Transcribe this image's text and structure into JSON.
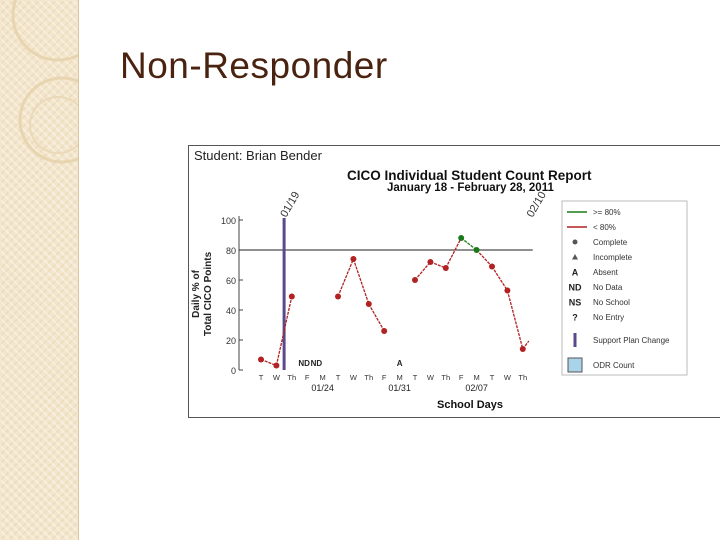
{
  "slide": {
    "title": "Non-Responder"
  },
  "chart_data": {
    "type": "line",
    "student_label": "Student: Brian Bender",
    "title": "CICO Individual Student Count Report",
    "subtitle": "January 18 - February 28, 2011",
    "ylabel_line1": "Daily % of",
    "ylabel_line2": "Total CICO Points",
    "xlabel": "School Days",
    "ylim": [
      0,
      100
    ],
    "y_ticks": [
      0,
      20,
      40,
      60,
      80,
      100
    ],
    "goal_line": 80,
    "x_ticks": [
      "T",
      "W",
      "Th",
      "F",
      "M",
      "T",
      "W",
      "Th",
      "F",
      "M",
      "T",
      "W",
      "Th",
      "F",
      "M",
      "T",
      "W",
      "Th"
    ],
    "date_labels": [
      {
        "index": 4,
        "text": "01/24"
      },
      {
        "index": 9,
        "text": "01/31"
      },
      {
        "index": 14,
        "text": "02/07"
      }
    ],
    "rotated_labels": [
      {
        "index": 1.5,
        "text": "01/19"
      },
      {
        "index": 17.5,
        "text": "02/10"
      }
    ],
    "status_labels": [
      {
        "index": 2.8,
        "text": "ND"
      },
      {
        "index": 3.6,
        "text": "ND"
      },
      {
        "index": 9.0,
        "text": "A"
      }
    ],
    "support_plan_change_index": 1.5,
    "points": [
      {
        "x": 0,
        "y": 7,
        "color": "#b22222"
      },
      {
        "x": 1,
        "y": 3,
        "color": "#b22222"
      },
      {
        "x": 2,
        "y": 49,
        "color": "#b22222"
      },
      {
        "x": 5,
        "y": 49,
        "color": "#b22222"
      },
      {
        "x": 6,
        "y": 74,
        "color": "#b22222"
      },
      {
        "x": 7,
        "y": 44,
        "color": "#b22222"
      },
      {
        "x": 8,
        "y": 26,
        "color": "#b22222"
      },
      {
        "x": 10,
        "y": 60,
        "color": "#b22222"
      },
      {
        "x": 11,
        "y": 72,
        "color": "#b22222"
      },
      {
        "x": 12,
        "y": 68,
        "color": "#b22222"
      },
      {
        "x": 13,
        "y": 88,
        "color": "#1a7a1a"
      },
      {
        "x": 14,
        "y": 80,
        "color": "#1a7a1a"
      },
      {
        "x": 15,
        "y": 69,
        "color": "#b22222"
      },
      {
        "x": 16,
        "y": 53,
        "color": "#b22222"
      },
      {
        "x": 17,
        "y": 14,
        "color": "#b22222"
      }
    ],
    "segments": [
      [
        0,
        1,
        2
      ],
      [
        3,
        4,
        5,
        6
      ],
      [
        7,
        8,
        9,
        10,
        11,
        12,
        13,
        14
      ]
    ],
    "legend": [
      {
        "symbol": "green-line",
        "text": ">= 80%"
      },
      {
        "symbol": "red-line",
        "text": "< 80%"
      },
      {
        "symbol": "circle",
        "text": "Complete"
      },
      {
        "symbol": "triangle",
        "text": "Incomplete"
      },
      {
        "symbol": "A",
        "text": "Absent"
      },
      {
        "symbol": "ND",
        "text": "No Data"
      },
      {
        "symbol": "NS",
        "text": "No School"
      },
      {
        "symbol": "?",
        "text": "No Entry"
      },
      {
        "symbol": "bar",
        "text": "Support Plan Change"
      },
      {
        "symbol": "box",
        "text": "ODR Count"
      }
    ],
    "colors": {
      "above": "#1a7a1a",
      "below": "#b22222",
      "support_bar": "#5a4a8c",
      "odr_box": "#a9d3e8"
    }
  }
}
